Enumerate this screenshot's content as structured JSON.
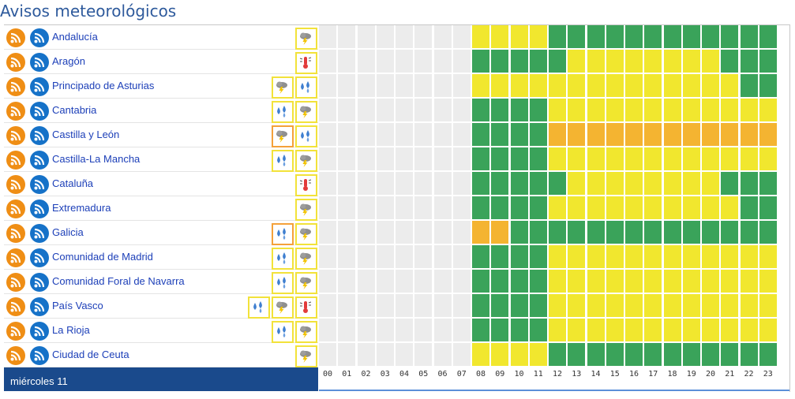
{
  "title": "Avisos meteorológicos",
  "day_label": "miércoles 11",
  "hours": [
    "00",
    "01",
    "02",
    "03",
    "04",
    "05",
    "06",
    "07",
    "08",
    "09",
    "10",
    "11",
    "12",
    "13",
    "14",
    "15",
    "16",
    "17",
    "18",
    "19",
    "20",
    "21",
    "22",
    "23"
  ],
  "colors": {
    "none": "#ececec",
    "green": "#3aa35a",
    "yellow": "#f1e72e",
    "orange": "#f4b431",
    "rss_orange": "#ef8e15",
    "rss_blue": "#1672c8",
    "link": "#1c3fb8",
    "header": "#1a4a8c"
  },
  "regions": [
    {
      "name": "Andalucía",
      "icons": [
        {
          "type": "storm-icon",
          "level": "yellow"
        }
      ],
      "hourly": [
        "none",
        "none",
        "none",
        "none",
        "none",
        "none",
        "none",
        "none",
        "yellow",
        "yellow",
        "yellow",
        "yellow",
        "green",
        "green",
        "green",
        "green",
        "green",
        "green",
        "green",
        "green",
        "green",
        "green",
        "green",
        "green"
      ]
    },
    {
      "name": "Aragón",
      "icons": [
        {
          "type": "heat-icon",
          "level": "yellow"
        }
      ],
      "hourly": [
        "none",
        "none",
        "none",
        "none",
        "none",
        "none",
        "none",
        "none",
        "green",
        "green",
        "green",
        "green",
        "green",
        "yellow",
        "yellow",
        "yellow",
        "yellow",
        "yellow",
        "yellow",
        "yellow",
        "yellow",
        "green",
        "green",
        "green"
      ]
    },
    {
      "name": "Principado de Asturias",
      "icons": [
        {
          "type": "storm-icon",
          "level": "yellow"
        },
        {
          "type": "rain-icon",
          "level": "yellow"
        }
      ],
      "hourly": [
        "none",
        "none",
        "none",
        "none",
        "none",
        "none",
        "none",
        "none",
        "yellow",
        "yellow",
        "yellow",
        "yellow",
        "yellow",
        "yellow",
        "yellow",
        "yellow",
        "yellow",
        "yellow",
        "yellow",
        "yellow",
        "yellow",
        "yellow",
        "green",
        "green"
      ]
    },
    {
      "name": "Cantabria",
      "icons": [
        {
          "type": "rain-icon",
          "level": "yellow"
        },
        {
          "type": "storm-icon",
          "level": "yellow"
        }
      ],
      "hourly": [
        "none",
        "none",
        "none",
        "none",
        "none",
        "none",
        "none",
        "none",
        "green",
        "green",
        "green",
        "green",
        "yellow",
        "yellow",
        "yellow",
        "yellow",
        "yellow",
        "yellow",
        "yellow",
        "yellow",
        "yellow",
        "yellow",
        "yellow",
        "yellow"
      ]
    },
    {
      "name": "Castilla y León",
      "icons": [
        {
          "type": "storm-icon",
          "level": "orange"
        },
        {
          "type": "rain-icon",
          "level": "yellow"
        }
      ],
      "hourly": [
        "none",
        "none",
        "none",
        "none",
        "none",
        "none",
        "none",
        "none",
        "green",
        "green",
        "green",
        "green",
        "orange",
        "orange",
        "orange",
        "orange",
        "orange",
        "orange",
        "orange",
        "orange",
        "orange",
        "orange",
        "orange",
        "orange"
      ]
    },
    {
      "name": "Castilla-La Mancha",
      "icons": [
        {
          "type": "rain-icon",
          "level": "yellow"
        },
        {
          "type": "storm-icon",
          "level": "yellow"
        }
      ],
      "hourly": [
        "none",
        "none",
        "none",
        "none",
        "none",
        "none",
        "none",
        "none",
        "green",
        "green",
        "green",
        "green",
        "yellow",
        "yellow",
        "yellow",
        "yellow",
        "yellow",
        "yellow",
        "yellow",
        "yellow",
        "yellow",
        "yellow",
        "yellow",
        "yellow"
      ]
    },
    {
      "name": "Cataluña",
      "icons": [
        {
          "type": "heat-icon",
          "level": "yellow"
        }
      ],
      "hourly": [
        "none",
        "none",
        "none",
        "none",
        "none",
        "none",
        "none",
        "none",
        "green",
        "green",
        "green",
        "green",
        "green",
        "yellow",
        "yellow",
        "yellow",
        "yellow",
        "yellow",
        "yellow",
        "yellow",
        "yellow",
        "green",
        "green",
        "green"
      ]
    },
    {
      "name": "Extremadura",
      "icons": [
        {
          "type": "storm-icon",
          "level": "yellow"
        }
      ],
      "hourly": [
        "none",
        "none",
        "none",
        "none",
        "none",
        "none",
        "none",
        "none",
        "green",
        "green",
        "green",
        "green",
        "yellow",
        "yellow",
        "yellow",
        "yellow",
        "yellow",
        "yellow",
        "yellow",
        "yellow",
        "yellow",
        "yellow",
        "green",
        "green"
      ]
    },
    {
      "name": "Galicia",
      "icons": [
        {
          "type": "rain-icon",
          "level": "orange"
        },
        {
          "type": "storm-icon",
          "level": "yellow"
        }
      ],
      "hourly": [
        "none",
        "none",
        "none",
        "none",
        "none",
        "none",
        "none",
        "none",
        "orange",
        "orange",
        "green",
        "green",
        "green",
        "green",
        "green",
        "green",
        "green",
        "green",
        "green",
        "green",
        "green",
        "green",
        "green",
        "green"
      ]
    },
    {
      "name": "Comunidad de Madrid",
      "icons": [
        {
          "type": "rain-icon",
          "level": "yellow"
        },
        {
          "type": "storm-icon",
          "level": "yellow"
        }
      ],
      "hourly": [
        "none",
        "none",
        "none",
        "none",
        "none",
        "none",
        "none",
        "none",
        "green",
        "green",
        "green",
        "green",
        "yellow",
        "yellow",
        "yellow",
        "yellow",
        "yellow",
        "yellow",
        "yellow",
        "yellow",
        "yellow",
        "yellow",
        "yellow",
        "yellow"
      ]
    },
    {
      "name": "Comunidad Foral de Navarra",
      "icons": [
        {
          "type": "rain-icon",
          "level": "yellow"
        },
        {
          "type": "storm-icon",
          "level": "yellow"
        }
      ],
      "hourly": [
        "none",
        "none",
        "none",
        "none",
        "none",
        "none",
        "none",
        "none",
        "green",
        "green",
        "green",
        "green",
        "yellow",
        "yellow",
        "yellow",
        "yellow",
        "yellow",
        "yellow",
        "yellow",
        "yellow",
        "yellow",
        "yellow",
        "yellow",
        "yellow"
      ]
    },
    {
      "name": "País Vasco",
      "icons": [
        {
          "type": "rain-icon",
          "level": "yellow"
        },
        {
          "type": "storm-icon",
          "level": "yellow"
        },
        {
          "type": "heat-icon",
          "level": "yellow"
        }
      ],
      "hourly": [
        "none",
        "none",
        "none",
        "none",
        "none",
        "none",
        "none",
        "none",
        "green",
        "green",
        "green",
        "green",
        "yellow",
        "yellow",
        "yellow",
        "yellow",
        "yellow",
        "yellow",
        "yellow",
        "yellow",
        "yellow",
        "yellow",
        "yellow",
        "yellow"
      ]
    },
    {
      "name": "La Rioja",
      "icons": [
        {
          "type": "rain-icon",
          "level": "yellow"
        },
        {
          "type": "storm-icon",
          "level": "yellow"
        }
      ],
      "hourly": [
        "none",
        "none",
        "none",
        "none",
        "none",
        "none",
        "none",
        "none",
        "green",
        "green",
        "green",
        "green",
        "yellow",
        "yellow",
        "yellow",
        "yellow",
        "yellow",
        "yellow",
        "yellow",
        "yellow",
        "yellow",
        "yellow",
        "yellow",
        "yellow"
      ]
    },
    {
      "name": "Ciudad de Ceuta",
      "icons": [
        {
          "type": "storm-icon",
          "level": "yellow"
        }
      ],
      "hourly": [
        "none",
        "none",
        "none",
        "none",
        "none",
        "none",
        "none",
        "none",
        "yellow",
        "yellow",
        "yellow",
        "yellow",
        "green",
        "green",
        "green",
        "green",
        "green",
        "green",
        "green",
        "green",
        "green",
        "green",
        "green",
        "green"
      ]
    }
  ]
}
